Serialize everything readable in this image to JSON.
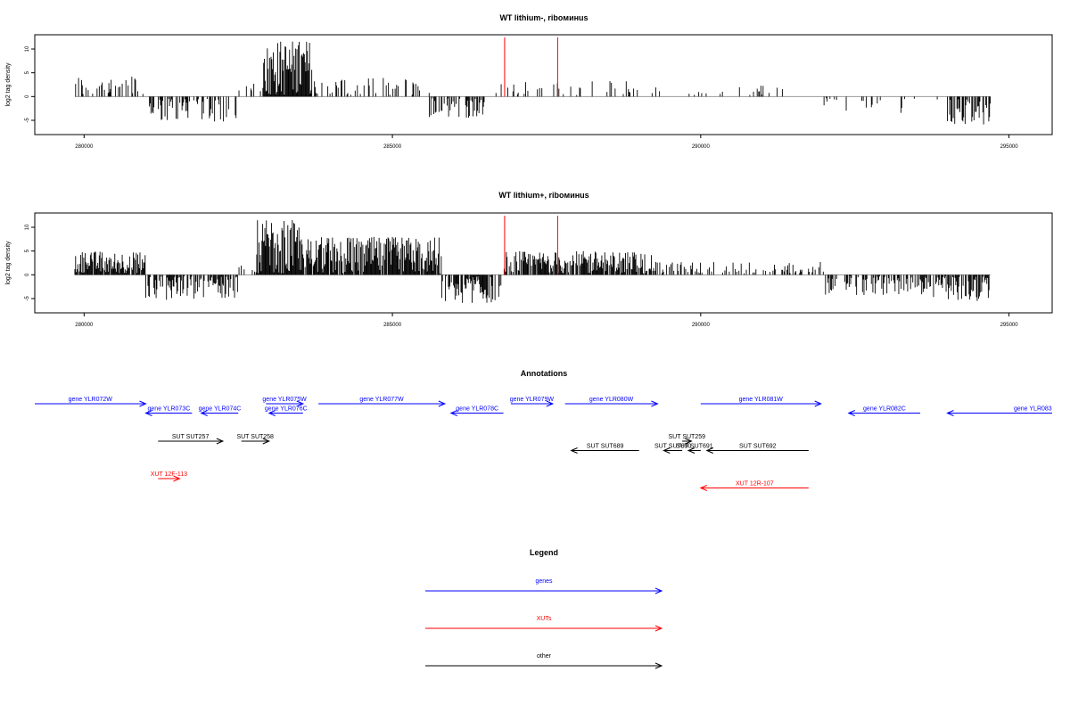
{
  "chart_data": [
    {
      "type": "bar",
      "title": "WT lithium-, riboминus",
      "ylabel": "log2 tag density",
      "xlim": [
        279200,
        295700
      ],
      "ylim": [
        -8,
        13
      ],
      "xticks": [
        280000,
        285000,
        290000,
        295000
      ],
      "yticks": [
        -5,
        0,
        5,
        10
      ],
      "markers": [
        286820,
        287680
      ],
      "marker_color": "#ff0000",
      "bar_color": "#000000",
      "baseline_color": "#999999",
      "segments": [
        {
          "from": 279850,
          "to": 281000,
          "mean": 2,
          "amp": 2.5,
          "density": 0.35
        },
        {
          "from": 281000,
          "to": 282500,
          "mean": -2.5,
          "amp": 3,
          "density": 0.45
        },
        {
          "from": 282500,
          "to": 282900,
          "mean": 1,
          "amp": 2,
          "density": 0.2
        },
        {
          "from": 282900,
          "to": 283700,
          "mean": 6,
          "amp": 6,
          "density": 1
        },
        {
          "from": 283700,
          "to": 285600,
          "mean": 1.5,
          "amp": 2.5,
          "density": 0.3
        },
        {
          "from": 285600,
          "to": 286500,
          "mean": -2,
          "amp": 2.5,
          "density": 0.5
        },
        {
          "from": 286500,
          "to": 289500,
          "mean": 1.5,
          "amp": 2,
          "density": 0.18
        },
        {
          "from": 289500,
          "to": 292000,
          "mean": 0.5,
          "amp": 2,
          "density": 0.06
        },
        {
          "from": 292000,
          "to": 293500,
          "mean": -1.5,
          "amp": 2,
          "density": 0.2
        },
        {
          "from": 293500,
          "to": 294000,
          "mean": -0.5,
          "amp": 1,
          "density": 0.05
        },
        {
          "from": 294000,
          "to": 294700,
          "mean": -3,
          "amp": 3,
          "density": 0.7
        }
      ]
    },
    {
      "type": "bar",
      "title": "WT lithium+, riboминus",
      "ylabel": "log2 tag density",
      "xlim": [
        279200,
        295700
      ],
      "ylim": [
        -8,
        13
      ],
      "xticks": [
        280000,
        285000,
        290000,
        295000
      ],
      "yticks": [
        -5,
        0,
        5,
        10
      ],
      "markers": [
        286820,
        287680
      ],
      "marker_color": "#ff0000",
      "bar_color": "#000000",
      "baseline_color": "#999999",
      "segments": [
        {
          "from": 279850,
          "to": 281000,
          "mean": 2.5,
          "amp": 2.5,
          "density": 0.9
        },
        {
          "from": 281000,
          "to": 282500,
          "mean": -2.5,
          "amp": 3,
          "density": 0.6
        },
        {
          "from": 282500,
          "to": 282800,
          "mean": 0.5,
          "amp": 1.5,
          "density": 0.2
        },
        {
          "from": 282800,
          "to": 283500,
          "mean": 5.5,
          "amp": 6,
          "density": 1
        },
        {
          "from": 283500,
          "to": 285800,
          "mean": 4,
          "amp": 4,
          "density": 0.9
        },
        {
          "from": 285800,
          "to": 286800,
          "mean": -3,
          "amp": 3,
          "density": 0.8
        },
        {
          "from": 286800,
          "to": 289300,
          "mean": 2.5,
          "amp": 2.5,
          "density": 0.8
        },
        {
          "from": 289300,
          "to": 292000,
          "mean": 0.8,
          "amp": 2,
          "density": 0.3
        },
        {
          "from": 292000,
          "to": 293500,
          "mean": -2,
          "amp": 2.5,
          "density": 0.5
        },
        {
          "from": 293500,
          "to": 294700,
          "mean": -2.5,
          "amp": 3,
          "density": 0.7
        }
      ]
    }
  ],
  "annotations": {
    "title": "Annotations",
    "features": [
      {
        "label": "gene YLR072W",
        "start": 279200,
        "end": 281000,
        "strand": "+",
        "kind": "gene",
        "row": 0
      },
      {
        "label": "gene YLR073C",
        "start": 281000,
        "end": 281750,
        "strand": "-",
        "kind": "gene",
        "row": 1
      },
      {
        "label": "gene YLR074C",
        "start": 281900,
        "end": 282500,
        "strand": "-",
        "kind": "gene",
        "row": 1
      },
      {
        "label": "gene YLR075W",
        "start": 282950,
        "end": 283550,
        "strand": "+",
        "kind": "gene",
        "row": 0
      },
      {
        "label": "gene YLR076C",
        "start": 283000,
        "end": 283550,
        "strand": "-",
        "kind": "gene",
        "row": 1
      },
      {
        "label": "gene YLR077W",
        "start": 283800,
        "end": 285850,
        "strand": "+",
        "kind": "gene",
        "row": 0
      },
      {
        "label": "gene YLR078C",
        "start": 285950,
        "end": 286800,
        "strand": "-",
        "kind": "gene",
        "row": 1
      },
      {
        "label": "gene YLR079W",
        "start": 286920,
        "end": 287600,
        "strand": "+",
        "kind": "gene",
        "row": 0
      },
      {
        "label": "gene YLR080W",
        "start": 287800,
        "end": 289300,
        "strand": "+",
        "kind": "gene",
        "row": 0
      },
      {
        "label": "gene YLR081W",
        "start": 290000,
        "end": 291950,
        "strand": "+",
        "kind": "gene",
        "row": 0
      },
      {
        "label": "gene YLR082C",
        "start": 292400,
        "end": 293560,
        "strand": "-",
        "kind": "gene",
        "row": 1
      },
      {
        "label": "gene YLR083",
        "start": 294000,
        "end": 295700,
        "strand": "-",
        "kind": "gene",
        "row": 1,
        "anchor": "right"
      },
      {
        "label": "SUT SUT257",
        "start": 281200,
        "end": 282250,
        "strand": "+",
        "kind": "other",
        "row": 4
      },
      {
        "label": "SUT SUT258",
        "start": 282550,
        "end": 283000,
        "strand": "+",
        "kind": "other",
        "row": 4
      },
      {
        "label": "SUT SUT689",
        "start": 287900,
        "end": 289000,
        "strand": "-",
        "kind": "other",
        "row": 5
      },
      {
        "label": "SUT SUT690",
        "start": 289400,
        "end": 289700,
        "strand": "-",
        "kind": "other",
        "row": 5
      },
      {
        "label": "SUT SUT259",
        "start": 289700,
        "end": 289850,
        "strand": "+",
        "kind": "other",
        "row": 4
      },
      {
        "label": "SUT SUT691",
        "start": 289800,
        "end": 290000,
        "strand": "-",
        "kind": "other",
        "row": 5
      },
      {
        "label": "SUT SUT692",
        "start": 290100,
        "end": 291750,
        "strand": "-",
        "kind": "other",
        "row": 5
      },
      {
        "label": "XUT 12F-113",
        "start": 281200,
        "end": 281550,
        "strand": "+",
        "kind": "xut",
        "row": 8
      },
      {
        "label": "XUT 12R-107",
        "start": 290000,
        "end": 291750,
        "strand": "-",
        "kind": "xut",
        "row": 9
      }
    ]
  },
  "legend": {
    "title": "Legend",
    "items": [
      {
        "label": "genes",
        "color": "#0000ff"
      },
      {
        "label": "XUTs",
        "color": "#ff0000"
      },
      {
        "label": "other",
        "color": "#000000"
      }
    ]
  },
  "colors": {
    "gene": "#0000ff",
    "xut": "#ff0000",
    "other": "#000000"
  }
}
